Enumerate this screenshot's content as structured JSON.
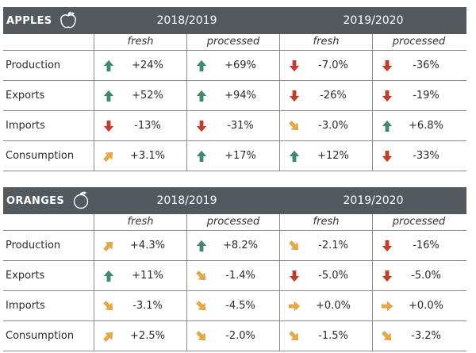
{
  "tables": [
    {
      "title": "APPLES",
      "fruit_icon": "apple-icon",
      "years": [
        "2018/2019",
        "2019/2020"
      ],
      "subheaders": [
        "fresh",
        "processed",
        "fresh",
        "processed"
      ],
      "rows": [
        {
          "label": "Production",
          "cells": [
            {
              "icon": "up",
              "value": "+24%"
            },
            {
              "icon": "up",
              "value": "+69%"
            },
            {
              "icon": "down",
              "value": "-7.0%"
            },
            {
              "icon": "down",
              "value": "-36%"
            }
          ]
        },
        {
          "label": "Exports",
          "cells": [
            {
              "icon": "up",
              "value": "+52%"
            },
            {
              "icon": "up",
              "value": "+94%"
            },
            {
              "icon": "down",
              "value": "-26%"
            },
            {
              "icon": "down",
              "value": "-19%"
            }
          ]
        },
        {
          "label": "Imports",
          "cells": [
            {
              "icon": "down",
              "value": "-13%"
            },
            {
              "icon": "down",
              "value": "-31%"
            },
            {
              "icon": "down-right",
              "value": "-3.0%"
            },
            {
              "icon": "up",
              "value": "+6.8%"
            }
          ]
        },
        {
          "label": "Consumption",
          "cells": [
            {
              "icon": "up-right",
              "value": "+3.1%"
            },
            {
              "icon": "up",
              "value": "+17%"
            },
            {
              "icon": "up",
              "value": "+12%"
            },
            {
              "icon": "down",
              "value": "-33%"
            }
          ]
        }
      ]
    },
    {
      "title": "ORANGES",
      "fruit_icon": "orange-icon",
      "years": [
        "2018/2019",
        "2019/2020"
      ],
      "subheaders": [
        "fresh",
        "processed",
        "fresh",
        "processed"
      ],
      "rows": [
        {
          "label": "Production",
          "cells": [
            {
              "icon": "up-right",
              "value": "+4.3%"
            },
            {
              "icon": "up",
              "value": "+8.2%"
            },
            {
              "icon": "down-right",
              "value": "-2.1%"
            },
            {
              "icon": "down",
              "value": "-16%"
            }
          ]
        },
        {
          "label": "Exports",
          "cells": [
            {
              "icon": "up",
              "value": "+11%"
            },
            {
              "icon": "down-right",
              "value": "-1.4%"
            },
            {
              "icon": "down",
              "value": "-5.0%"
            },
            {
              "icon": "down",
              "value": "-5.0%"
            }
          ]
        },
        {
          "label": "Imports",
          "cells": [
            {
              "icon": "down-right",
              "value": "-3.1%"
            },
            {
              "icon": "down-right",
              "value": "-4.5%"
            },
            {
              "icon": "right",
              "value": "+0.0%"
            },
            {
              "icon": "right",
              "value": "+0.0%"
            }
          ]
        },
        {
          "label": "Consumption",
          "cells": [
            {
              "icon": "up-right",
              "value": "+2.5%"
            },
            {
              "icon": "down-right",
              "value": "-2.0%"
            },
            {
              "icon": "down-right",
              "value": "-1.5%"
            },
            {
              "icon": "down-right",
              "value": "-3.2%"
            }
          ]
        }
      ]
    }
  ],
  "colors": {
    "header_bg": "#525a60",
    "up": "#3d8c6a",
    "down": "#c83c27",
    "sideways": "#e9a83a"
  }
}
